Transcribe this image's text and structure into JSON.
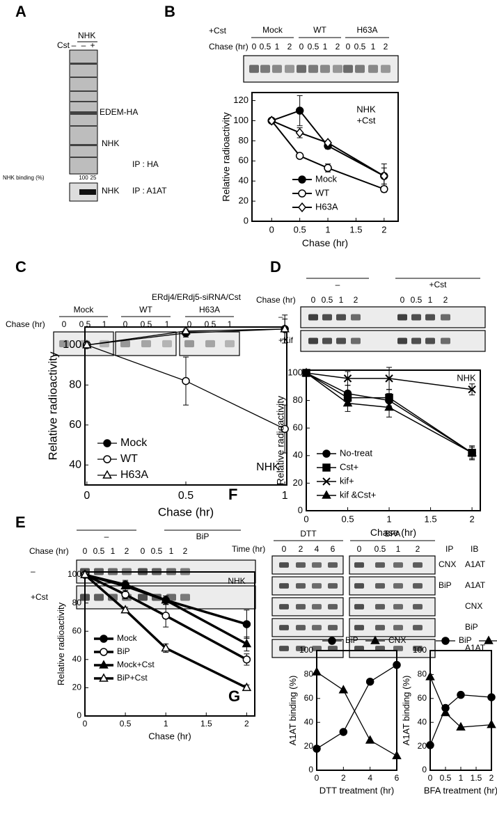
{
  "blots": {
    "A": {
      "label": "A",
      "group": "NHK",
      "row_label": "Cst",
      "lanes": [
        "–",
        "–",
        "+"
      ],
      "bands": [
        "EDEM-HA",
        "NHK"
      ],
      "ip_top": "IP : HA",
      "binding_label": "NHK binding (%)",
      "binding_values": [
        100,
        25
      ],
      "band_bottom": "NHK",
      "ip_bottom": "IP : A1AT"
    },
    "B": {
      "label": "B",
      "treatment": "+Cst",
      "groups": [
        "Mock",
        "WT",
        "H63A"
      ],
      "row_label": "Chase (hr)",
      "lanes": [
        0,
        0.5,
        1,
        2
      ]
    },
    "C": {
      "label": "C",
      "title": "ERdj4/ERdj5-siRNA/Cst",
      "groups": [
        "Mock",
        "WT",
        "H63A"
      ],
      "row_label": "Chase (hr)",
      "lanes": [
        0,
        0.5,
        1
      ]
    },
    "D": {
      "label": "D",
      "groups": [
        "–",
        "+Cst"
      ],
      "row_label": "Chase (hr)",
      "lanes": [
        0,
        0.5,
        1,
        2
      ],
      "rows": [
        "–",
        "+Kif"
      ]
    },
    "E": {
      "label": "E",
      "groups": [
        "–",
        "BiP"
      ],
      "row_label": "Chase (hr)",
      "lanes": [
        0,
        0.5,
        1,
        2
      ],
      "rows": [
        "–",
        "+Cst"
      ]
    },
    "F": {
      "label": "F",
      "groups": [
        "DTT",
        "BFA"
      ],
      "row_label": "Time (hr)",
      "lanes": [
        [
          0,
          2,
          4,
          6
        ],
        [
          0,
          0.5,
          1,
          2
        ]
      ],
      "ip_header": "IP",
      "ib_header": "IB",
      "rows": [
        {
          "ip": "CNX",
          "ib": "A1AT"
        },
        {
          "ip": "BiP",
          "ib": "A1AT"
        },
        {
          "ib": "CNX"
        },
        {
          "ib": "BiP"
        },
        {
          "ib": "A1AT"
        }
      ]
    },
    "G": {
      "label": "G"
    }
  },
  "chart_data": [
    {
      "type": "line",
      "x": [
        0,
        0.5,
        1,
        2
      ],
      "xlim": [
        -0.35,
        2.25
      ],
      "xticks": [
        0,
        0.5,
        1,
        1.5,
        2
      ],
      "ylim": [
        0,
        128
      ],
      "yticks": [
        0,
        20,
        40,
        60,
        80,
        100,
        120
      ],
      "xlabel": "Chase (hr)",
      "ylabel": "Relative radioactivity",
      "annotation": [
        "NHK",
        "+Cst"
      ],
      "legend": "lower left",
      "series": [
        {
          "name": "Mock",
          "color": "#000",
          "marker": "circle",
          "values": [
            100,
            110,
            75,
            45
          ],
          "errors": [
            0,
            15,
            3,
            12
          ]
        },
        {
          "name": "WT",
          "color": "#000",
          "marker": "open-circle",
          "values": [
            100,
            65,
            53,
            32
          ],
          "errors": [
            0,
            2,
            4,
            3
          ]
        },
        {
          "name": "H63A",
          "color": "#000",
          "marker": "open-diamond",
          "values": [
            100,
            88,
            78,
            45
          ],
          "errors": [
            0,
            5,
            2,
            8
          ]
        }
      ]
    },
    {
      "type": "line",
      "x": [
        0,
        0.5,
        1
      ],
      "xlim": [
        -0.01,
        1.01
      ],
      "xticks": [
        0,
        0.5,
        1
      ],
      "ylim": [
        30,
        109
      ],
      "yticks": [
        40,
        60,
        80,
        100
      ],
      "xlabel": "Chase (hr)",
      "ylabel": "Relative radioactivity",
      "annotation": [
        "NHK"
      ],
      "legend": "lower left",
      "series": [
        {
          "name": "Mock",
          "color": "#000",
          "marker": "circle",
          "values": [
            100,
            106,
            108
          ],
          "errors": [
            0,
            2,
            7
          ]
        },
        {
          "name": "WT",
          "color": "#000",
          "marker": "open-circle",
          "values": [
            100,
            82,
            58
          ],
          "errors": [
            0,
            12,
            12
          ]
        },
        {
          "name": "H63A",
          "color": "#000",
          "marker": "open-triangle",
          "values": [
            100,
            107,
            108
          ],
          "errors": [
            0,
            2,
            5
          ]
        }
      ]
    },
    {
      "type": "line",
      "x": [
        0,
        0.5,
        1,
        2
      ],
      "xlim": [
        0,
        2.1
      ],
      "xticks": [
        0,
        0.5,
        1,
        1.5,
        2
      ],
      "ylim": [
        0,
        102
      ],
      "yticks": [
        0,
        20,
        40,
        60,
        80,
        100
      ],
      "xlabel": "Chase (hr)",
      "ylabel": "Relative radioactivity",
      "annotation": [
        "NHK"
      ],
      "legend": "lower left",
      "series": [
        {
          "name": "No-treat",
          "color": "#000",
          "marker": "circle",
          "values": [
            100,
            85,
            80,
            42
          ],
          "errors": [
            0,
            6,
            5,
            4
          ]
        },
        {
          "name": "Cst+",
          "color": "#000",
          "marker": "square",
          "values": [
            100,
            82,
            82,
            42
          ],
          "errors": [
            0,
            5,
            6,
            5
          ]
        },
        {
          "name": "kif+",
          "color": "#000",
          "marker": "x",
          "values": [
            100,
            96,
            96,
            88
          ],
          "errors": [
            0,
            5,
            8,
            4
          ]
        },
        {
          "name": "kif &Cst+",
          "color": "#000",
          "marker": "triangle",
          "values": [
            100,
            78,
            75,
            42
          ],
          "errors": [
            0,
            6,
            7,
            5
          ]
        }
      ]
    },
    {
      "type": "line",
      "x": [
        0,
        0.5,
        1,
        2
      ],
      "xlim": [
        0,
        2.1
      ],
      "xticks": [
        0,
        0.5,
        1,
        1.5,
        2
      ],
      "ylim": [
        0,
        102
      ],
      "yticks": [
        0,
        20,
        40,
        60,
        80,
        100
      ],
      "xlabel": "Chase (hr)",
      "ylabel": "Relative radioactivity",
      "annotation": [
        "NHK"
      ],
      "legend": "lower left",
      "series": [
        {
          "name": "Mock",
          "color": "#000",
          "marker": "circle",
          "values": [
            100,
            93,
            82,
            65
          ],
          "errors": [
            0,
            2,
            3,
            10
          ]
        },
        {
          "name": "BiP",
          "color": "#000",
          "marker": "open-circle",
          "values": [
            100,
            86,
            71,
            40
          ],
          "errors": [
            0,
            3,
            8,
            4
          ]
        },
        {
          "name": "Mock+Cst",
          "color": "#000",
          "marker": "triangle",
          "values": [
            100,
            92,
            82,
            51
          ],
          "errors": [
            0,
            4,
            3,
            5
          ]
        },
        {
          "name": "BiP+Cst",
          "color": "#000",
          "marker": "open-triangle",
          "values": [
            100,
            75,
            48,
            20
          ],
          "errors": [
            0,
            2,
            3,
            2
          ]
        }
      ]
    },
    {
      "type": "line",
      "x": [
        0,
        2,
        4,
        6
      ],
      "xlim": [
        0,
        6
      ],
      "xticks": [
        0,
        2,
        4,
        6
      ],
      "ylim": [
        0,
        100
      ],
      "yticks": [
        0,
        20,
        40,
        60,
        80,
        100
      ],
      "xlabel": "DTT treatment (hr)",
      "ylabel": "A1AT binding (%)",
      "legend": "top",
      "series": [
        {
          "name": "BiP",
          "color": "#000",
          "marker": "circle",
          "values": [
            18,
            32,
            74,
            88
          ]
        },
        {
          "name": "CNX",
          "color": "#000",
          "marker": "triangle",
          "values": [
            82,
            67,
            25,
            12
          ]
        }
      ]
    },
    {
      "type": "line",
      "x": [
        0,
        0.5,
        1,
        2
      ],
      "xlim": [
        0,
        2
      ],
      "xticks": [
        0,
        0.5,
        1,
        1.5,
        2
      ],
      "ylim": [
        0,
        100
      ],
      "yticks": [
        0,
        20,
        40,
        60,
        80,
        100
      ],
      "xlabel": "BFA treatment (hr)",
      "ylabel": "A1AT binding (%)",
      "legend": "top",
      "series": [
        {
          "name": "BiP",
          "color": "#000",
          "marker": "circle",
          "values": [
            21,
            52,
            63,
            61
          ]
        },
        {
          "name": "CNX",
          "color": "#000",
          "marker": "triangle",
          "values": [
            78,
            48,
            36,
            38
          ]
        }
      ]
    }
  ]
}
